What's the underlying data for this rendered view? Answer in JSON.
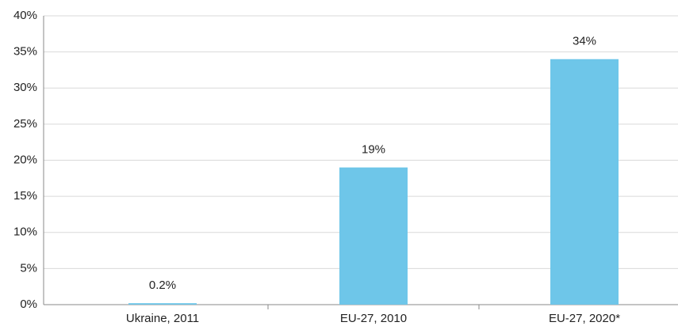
{
  "chart_data": {
    "type": "bar",
    "categories": [
      "Ukraine, 2011",
      "EU-27, 2010",
      "EU-27, 2020*"
    ],
    "values": [
      0.2,
      19,
      34
    ],
    "value_labels": [
      "0.2%",
      "19%",
      "34%"
    ],
    "color": "#6ec6e9",
    "ylim": [
      0,
      40
    ],
    "yticks": [
      {
        "value": 0,
        "label": "0%"
      },
      {
        "value": 5,
        "label": "5%"
      },
      {
        "value": 10,
        "label": "10%"
      },
      {
        "value": 15,
        "label": "15%"
      },
      {
        "value": 20,
        "label": "20%"
      },
      {
        "value": 25,
        "label": "25%"
      },
      {
        "value": 30,
        "label": "30%"
      },
      {
        "value": 35,
        "label": "35%"
      },
      {
        "value": 40,
        "label": "40%"
      }
    ],
    "grid": true
  }
}
